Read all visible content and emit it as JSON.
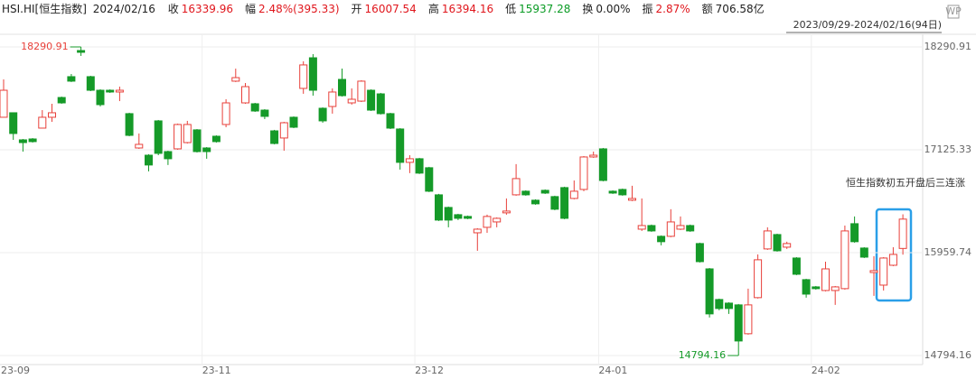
{
  "symbol": "HSI.HI[恒生指数]",
  "date": "2024/02/16",
  "header": [
    {
      "label": "收",
      "value": "16339.96",
      "color": "#e0161c"
    },
    {
      "label": "幅",
      "value": "2.48%(395.33)",
      "color": "#e0161c"
    },
    {
      "label": "开",
      "value": "16007.54",
      "color": "#e0161c"
    },
    {
      "label": "高",
      "value": "16394.16",
      "color": "#e0161c"
    },
    {
      "label": "低",
      "value": "15937.28",
      "color": "#0a9b24"
    },
    {
      "label": "换",
      "value": "0.00%",
      "color": "#222"
    },
    {
      "label": "振",
      "value": "2.87%",
      "color": "#e0161c"
    },
    {
      "label": "额",
      "value": "706.58亿",
      "color": "#222"
    }
  ],
  "date_range": "2023/09/29-2024/02/16(94日)",
  "chart_data": {
    "type": "candlestick",
    "annotation": "恒生指数初五开盘后三连涨",
    "up_color": "#e8403a",
    "down_color": "#159a28",
    "ylim": [
      14794.16,
      18290.91
    ],
    "yticks": [
      14794.16,
      15959.74,
      17125.33,
      18290.91
    ],
    "grid": true,
    "high_index": 8,
    "low_index": 76,
    "categories": [
      "23-09",
      null,
      null,
      null,
      null,
      null,
      null,
      null,
      null,
      null,
      null,
      null,
      null,
      null,
      null,
      null,
      null,
      null,
      null,
      null,
      null,
      "23-11",
      null,
      null,
      null,
      null,
      null,
      null,
      null,
      null,
      null,
      null,
      null,
      null,
      null,
      null,
      null,
      null,
      null,
      null,
      null,
      null,
      null,
      "23-12",
      null,
      null,
      null,
      null,
      null,
      null,
      null,
      null,
      null,
      null,
      null,
      null,
      null,
      null,
      null,
      null,
      null,
      null,
      "24-01",
      null,
      null,
      null,
      null,
      null,
      null,
      null,
      null,
      null,
      null,
      null,
      null,
      null,
      null,
      null,
      null,
      null,
      null,
      null,
      null,
      null,
      "24-02",
      null,
      null,
      null,
      null,
      null,
      null,
      null,
      null,
      null
    ],
    "open": [
      17494,
      17545,
      17238,
      17248,
      17371,
      17494,
      17718,
      17954,
      18250,
      17954,
      17800,
      17800,
      17780,
      17535,
      17146,
      17064,
      17453,
      17105,
      17136,
      17207,
      17351,
      17146,
      17279,
      17412,
      17903,
      17657,
      17647,
      17575,
      17340,
      17259,
      17494,
      17821,
      18168,
      17596,
      17616,
      17923,
      17657,
      17677,
      17800,
      17759,
      17535,
      17361,
      16983,
      17024,
      16922,
      16615,
      16472,
      16390,
      16370,
      16185,
      16247,
      16308,
      16411,
      16615,
      16656,
      16554,
      16666,
      16595,
      16697,
      16574,
      16676,
      17044,
      17136,
      16656,
      16676,
      16554,
      16226,
      16267,
      16145,
      16145,
      16226,
      16267,
      16063,
      15776,
      15429,
      15388,
      15368,
      15041,
      15450,
      16002,
      16165,
      16022,
      15899,
      15654,
      15572,
      15531,
      15531,
      15552,
      16288,
      16012,
      15735,
      15592,
      15817,
      16007.54
    ],
    "high": [
      17923,
      17545,
      17248,
      17258,
      17575,
      17647,
      17728,
      17984,
      18290.91,
      17964,
      17810,
      17810,
      17841,
      17545,
      17310,
      17075,
      17463,
      17115,
      17422,
      17453,
      17361,
      17156,
      17289,
      17698,
      18045,
      17882,
      17657,
      17586,
      17351,
      17442,
      17504,
      18128,
      18209,
      17606,
      17821,
      18045,
      17821,
      17913,
      17810,
      17770,
      17545,
      17371,
      17064,
      17034,
      16932,
      16625,
      16482,
      16400,
      16380,
      16237,
      16390,
      16359,
      16574,
      16963,
      16666,
      16564,
      16676,
      16605,
      16707,
      16778,
      17054,
      17105,
      17146,
      16666,
      16686,
      16717,
      16574,
      16278,
      16155,
      16452,
      16370,
      16278,
      16073,
      15786,
      15439,
      15398,
      15378,
      15552,
      15940,
      16247,
      16175,
      16084,
      15909,
      15664,
      15582,
      15858,
      15582,
      16267,
      16370,
      16022,
      15920,
      15909,
      16022,
      16394.16
    ],
    "low": [
      17494,
      17238,
      17105,
      17207,
      17371,
      17442,
      17647,
      17893,
      18189,
      17790,
      17616,
      17770,
      17677,
      17279,
      17136,
      16881,
      17064,
      16953,
      17126,
      17197,
      17095,
      17024,
      17207,
      17381,
      17893,
      17647,
      17555,
      17473,
      17187,
      17115,
      17371,
      17760,
      17739,
      17432,
      17535,
      17729,
      17637,
      17667,
      17565,
      17525,
      17361,
      16901,
      16861,
      16851,
      16646,
      16319,
      16247,
      16329,
      16339,
      15981,
      16185,
      16247,
      16390,
      16605,
      16605,
      16503,
      16625,
      16441,
      16339,
      16564,
      16656,
      17034,
      16768,
      16625,
      16605,
      16544,
      16206,
      16196,
      16043,
      16135,
      16216,
      16196,
      15848,
      15225,
      15307,
      15266,
      14794.16,
      15031,
      15440,
      15991,
      15971,
      16002,
      15705,
      15450,
      15541,
      15521,
      15368,
      15541,
      16073,
      15899,
      15470,
      15531,
      15807,
      15937.28
    ],
    "close": [
      17800,
      17310,
      17207,
      17218,
      17494,
      17545,
      17657,
      17903,
      18230,
      17800,
      17637,
      17780,
      17800,
      17289,
      17187,
      16953,
      17085,
      17024,
      17412,
      17412,
      17105,
      17105,
      17218,
      17657,
      17943,
      17841,
      17565,
      17504,
      17197,
      17432,
      17381,
      18087,
      17800,
      17453,
      17780,
      17739,
      17698,
      17903,
      17575,
      17535,
      17371,
      16983,
      17024,
      16861,
      16656,
      16329,
      16329,
      16349,
      16349,
      16226,
      16370,
      16349,
      16431,
      16799,
      16615,
      16513,
      16635,
      16452,
      16349,
      16656,
      17044,
      17064,
      16778,
      16635,
      16615,
      16574,
      16267,
      16206,
      16084,
      16308,
      16267,
      16206,
      15858,
      15266,
      15327,
      15327,
      14959,
      15368,
      15879,
      16206,
      15981,
      16063,
      15715,
      15490,
      15552,
      15776,
      15572,
      16206,
      16084,
      15909,
      15756,
      15899,
      15940,
      16339.96
    ]
  }
}
